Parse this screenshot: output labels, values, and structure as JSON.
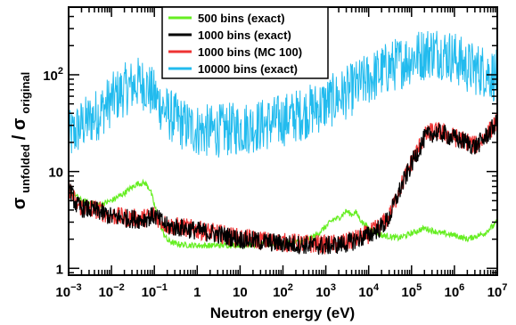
{
  "chart_data": {
    "type": "line",
    "xlabel": "Neutron energy  (eV)",
    "ylabel": {
      "sigma1": "σ",
      "sub1": "unfolded",
      "slash": " / ",
      "sigma2": "σ",
      "sub2": "original"
    },
    "x_scale": "log",
    "y_scale": "log",
    "xlim": [
      0.001,
      10000000
    ],
    "ylim": [
      0.85,
      500
    ],
    "x_ticks": [
      {
        "value": 0.001,
        "base": "10",
        "exp": "−3"
      },
      {
        "value": 0.01,
        "base": "10",
        "exp": "−2"
      },
      {
        "value": 0.1,
        "base": "10",
        "exp": "−1"
      },
      {
        "value": 1,
        "base": "1",
        "exp": ""
      },
      {
        "value": 10,
        "base": "10",
        "exp": ""
      },
      {
        "value": 100,
        "base": "10",
        "exp": "2"
      },
      {
        "value": 1000,
        "base": "10",
        "exp": "3"
      },
      {
        "value": 10000,
        "base": "10",
        "exp": "4"
      },
      {
        "value": 100000,
        "base": "10",
        "exp": "5"
      },
      {
        "value": 1000000,
        "base": "10",
        "exp": "6"
      },
      {
        "value": 10000000,
        "base": "10",
        "exp": "7"
      }
    ],
    "y_ticks": [
      {
        "value": 1,
        "base": "1",
        "exp": ""
      },
      {
        "value": 10,
        "base": "10",
        "exp": ""
      },
      {
        "value": 100,
        "base": "10",
        "exp": "2"
      }
    ],
    "legend_position": "top-center",
    "series": [
      {
        "name": "500 bins (exact)",
        "color": "#66ee22",
        "noise": 0.03,
        "x": [
          0.001,
          0.002,
          0.005,
          0.01,
          0.02,
          0.04,
          0.06,
          0.08,
          0.1,
          0.15,
          0.2,
          0.3,
          0.5,
          1,
          3,
          10,
          30,
          100,
          300,
          600,
          1000,
          1500,
          2000,
          3000,
          4000,
          5000,
          7000,
          10000,
          20000,
          50000,
          100000,
          200000,
          500000,
          1000000,
          2000000,
          5000000,
          10000000
        ],
        "y": [
          6.5,
          5.0,
          4.5,
          5.0,
          6.0,
          7.5,
          7.6,
          6.5,
          4.5,
          2.5,
          1.95,
          1.8,
          1.75,
          1.72,
          1.72,
          1.75,
          1.75,
          1.78,
          1.9,
          2.2,
          2.7,
          3.2,
          3.3,
          3.9,
          3.6,
          3.8,
          3.0,
          2.6,
          2.2,
          2.05,
          2.3,
          2.6,
          2.3,
          2.2,
          2.0,
          2.3,
          3.0
        ]
      },
      {
        "name": "1000 bins (exact)",
        "color": "#000000",
        "noise": 0.1,
        "x": [
          0.001,
          0.0015,
          0.002,
          0.005,
          0.01,
          0.02,
          0.05,
          0.1,
          0.15,
          0.2,
          0.5,
          1,
          3,
          10,
          30,
          100,
          300,
          1000,
          3000,
          10000,
          20000,
          30000,
          50000,
          100000,
          200000,
          300000,
          500000,
          1000000,
          2000000,
          3000000,
          5000000,
          10000000
        ],
        "y": [
          7.0,
          4.5,
          4.2,
          3.9,
          3.4,
          3.3,
          3.2,
          3.5,
          3.0,
          2.7,
          2.6,
          2.45,
          2.25,
          2.0,
          1.9,
          1.8,
          1.75,
          1.7,
          1.8,
          2.2,
          2.7,
          3.3,
          6.0,
          12.0,
          22.0,
          25.0,
          25.0,
          22.0,
          20.0,
          18.0,
          22.0,
          32.0
        ]
      },
      {
        "name": "1000 bins (MC 100)",
        "color": "#ee3333",
        "noise": 0.1,
        "x": [
          0.001,
          0.0015,
          0.002,
          0.005,
          0.01,
          0.02,
          0.05,
          0.1,
          0.15,
          0.2,
          0.5,
          1,
          3,
          10,
          30,
          100,
          300,
          1000,
          3000,
          10000,
          20000,
          30000,
          50000,
          100000,
          200000,
          300000,
          500000,
          1000000,
          2000000,
          3000000,
          5000000,
          10000000
        ],
        "y": [
          7.0,
          4.6,
          4.3,
          4.0,
          3.5,
          3.35,
          3.25,
          3.55,
          3.05,
          2.75,
          2.65,
          2.5,
          2.3,
          2.05,
          1.95,
          1.85,
          1.8,
          1.75,
          1.85,
          2.25,
          2.8,
          3.4,
          6.2,
          12.5,
          23.0,
          26.0,
          25.5,
          22.5,
          20.5,
          18.5,
          22.5,
          33.0
        ]
      },
      {
        "name": "10000 bins (exact)",
        "color": "#22bbee",
        "noise": 0.28,
        "x": [
          0.001,
          0.002,
          0.005,
          0.01,
          0.02,
          0.04,
          0.06,
          0.1,
          0.2,
          0.5,
          1,
          2,
          5,
          10,
          30,
          100,
          300,
          1000,
          3000,
          10000,
          30000,
          100000,
          200000,
          300000,
          500000,
          1000000,
          2000000,
          5000000,
          10000000
        ],
        "y": [
          22.0,
          30.0,
          40.0,
          55.0,
          70.0,
          82.0,
          80.0,
          60.0,
          40.0,
          30.0,
          27.0,
          26.0,
          27.0,
          28.0,
          30.0,
          34.0,
          40.0,
          50.0,
          65.0,
          90.0,
          120.0,
          150.0,
          165.0,
          175.0,
          170.0,
          150.0,
          120.0,
          110.0,
          95.0
        ]
      }
    ]
  }
}
